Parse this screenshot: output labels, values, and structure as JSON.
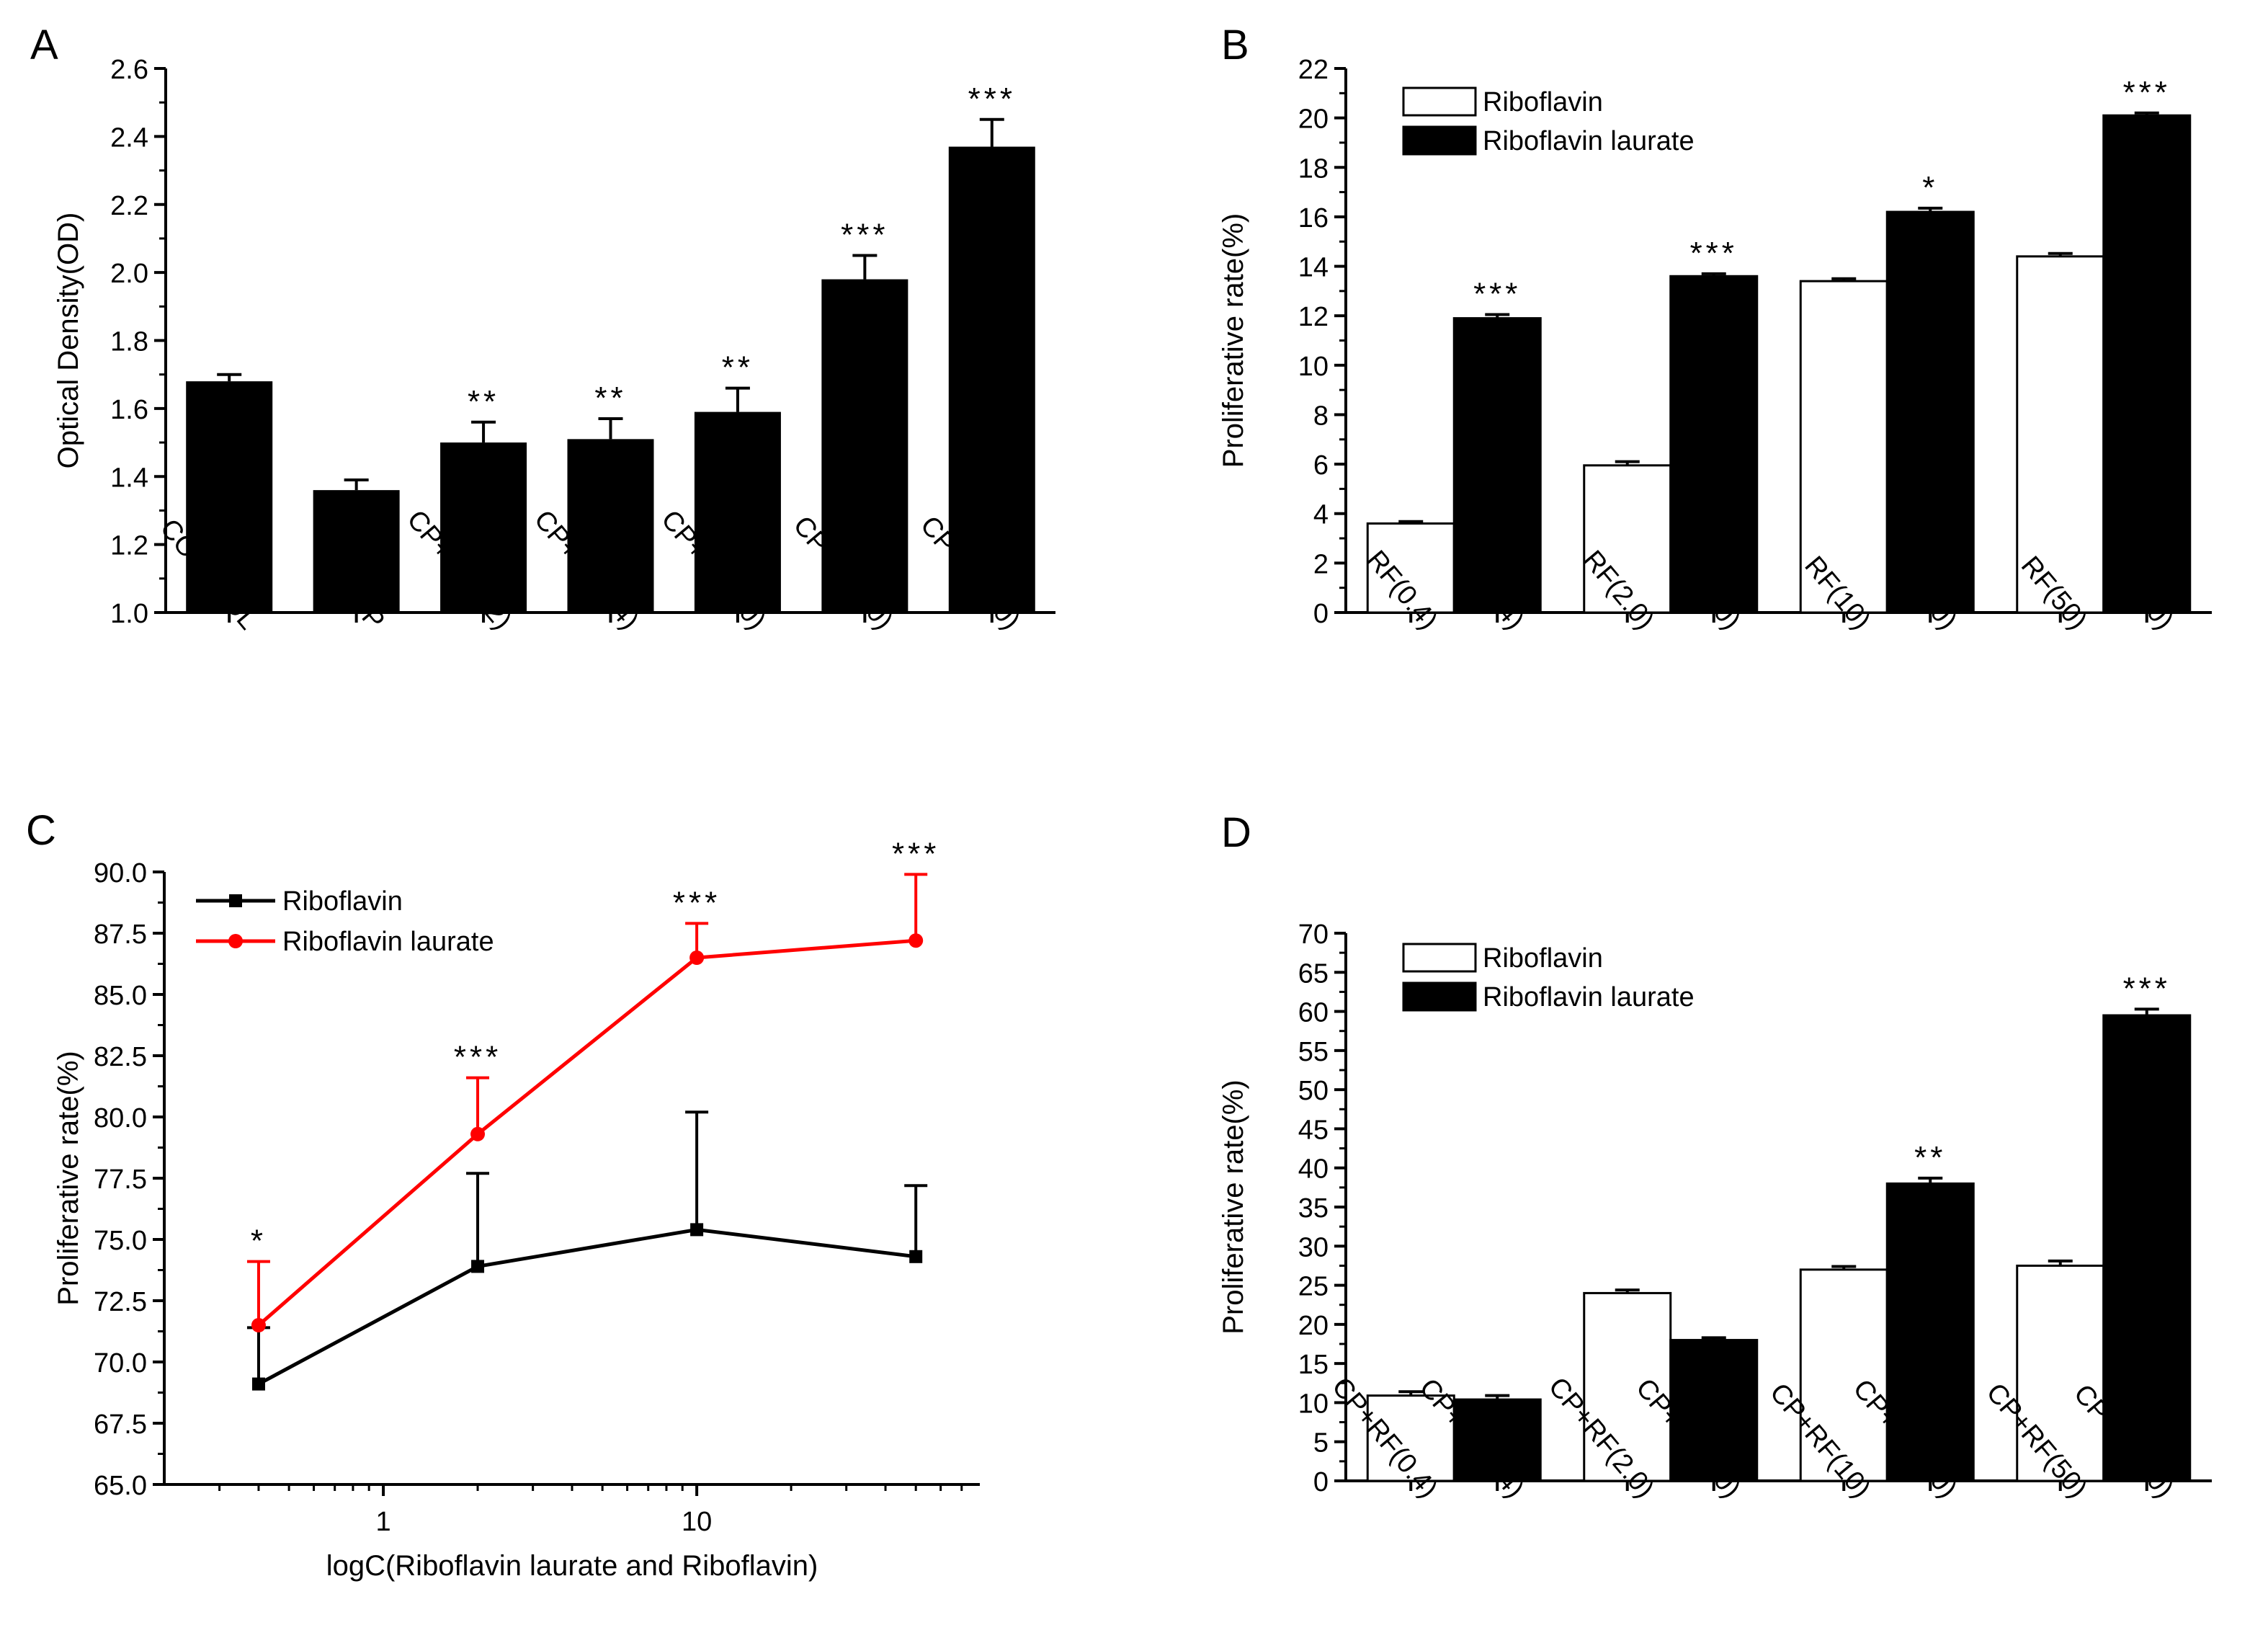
{
  "chart_data": [
    {
      "panel": "A",
      "type": "bar",
      "ylabel": "Optical Density(OD)",
      "ylim": [
        1.0,
        2.6
      ],
      "yticks": [
        "1.0",
        "1.2",
        "1.4",
        "1.6",
        "1.8",
        "2.0",
        "2.2",
        "2.4",
        "2.6"
      ],
      "categories": [
        "CONTROL",
        "CP",
        "CP+RL(0.2)",
        "CP+RL(0.4)",
        "CP+RL(2.0)",
        "CP+RL(10)",
        "CP+RL(50)"
      ],
      "values": [
        1.68,
        1.36,
        1.5,
        1.51,
        1.59,
        1.98,
        2.37
      ],
      "errors": [
        0.02,
        0.03,
        0.06,
        0.06,
        0.07,
        0.07,
        0.08
      ],
      "significance": [
        "",
        "",
        "**",
        "**",
        "**",
        "***",
        "***"
      ],
      "color": "#000000",
      "grid": false
    },
    {
      "panel": "B",
      "type": "bar",
      "ylabel": "Proliferative rate(%)",
      "ylim": [
        0,
        22
      ],
      "yticks": [
        "0",
        "2",
        "4",
        "6",
        "8",
        "10",
        "12",
        "14",
        "16",
        "18",
        "20",
        "22"
      ],
      "legend": {
        "position": "top-left",
        "entries": [
          "Riboflavin",
          "Riboflavin laurate"
        ]
      },
      "groups": [
        {
          "labels": [
            "RF(0.4)",
            "RL(0.4)"
          ],
          "values": [
            3.6,
            11.9
          ],
          "errors": [
            0.08,
            0.15
          ],
          "significance": [
            "",
            "***"
          ]
        },
        {
          "labels": [
            "RF(2.0)",
            "RL(2.0)"
          ],
          "values": [
            5.95,
            13.6
          ],
          "errors": [
            0.15,
            0.1
          ],
          "significance": [
            "",
            "***"
          ]
        },
        {
          "labels": [
            "RF(10)",
            "RL(10)"
          ],
          "values": [
            13.4,
            16.2
          ],
          "errors": [
            0.1,
            0.15
          ],
          "significance": [
            "",
            "*"
          ]
        },
        {
          "labels": [
            "RF(50)",
            "RL(50)"
          ],
          "values": [
            14.4,
            20.1
          ],
          "errors": [
            0.12,
            0.1
          ],
          "significance": [
            "",
            "***"
          ]
        }
      ],
      "series_colors": [
        "#ffffff",
        "#000000"
      ],
      "grid": false
    },
    {
      "panel": "C",
      "type": "line",
      "xscale": "log",
      "xlabel": "logC(Riboflavin laurate and Riboflavin)",
      "ylabel": "Proliferative rate(%)",
      "xlim": [
        0.2,
        80
      ],
      "xticks": [
        {
          "value": 1,
          "label": "1"
        },
        {
          "value": 10,
          "label": "10"
        }
      ],
      "ylim": [
        65.0,
        90.0
      ],
      "yticks": [
        "65.0",
        "67.5",
        "70.0",
        "72.5",
        "75.0",
        "77.5",
        "80.0",
        "82.5",
        "85.0",
        "87.5",
        "90.0"
      ],
      "x": [
        0.4,
        2,
        10,
        50
      ],
      "legend": {
        "position": "top-left"
      },
      "series": [
        {
          "name": "Riboflavin",
          "values": [
            69.1,
            73.9,
            75.4,
            74.3
          ],
          "errors": [
            2.3,
            3.8,
            4.8,
            2.9
          ],
          "marker": "square",
          "color": "#000000"
        },
        {
          "name": "Riboflavin laurate",
          "values": [
            71.5,
            79.3,
            86.5,
            87.2
          ],
          "errors": [
            2.6,
            2.3,
            1.4,
            2.7
          ],
          "marker": "circle",
          "color": "#ff0000",
          "significance": [
            "*",
            "***",
            "***",
            "***"
          ]
        }
      ],
      "grid": false
    },
    {
      "panel": "D",
      "type": "bar",
      "ylabel": "Proliferative rate(%)",
      "ylim": [
        0,
        70
      ],
      "yticks": [
        "0",
        "5",
        "10",
        "15",
        "20",
        "25",
        "30",
        "35",
        "40",
        "45",
        "50",
        "55",
        "60",
        "65",
        "70"
      ],
      "legend": {
        "position": "top-left",
        "entries": [
          "Riboflavin",
          "Riboflavin laurate"
        ]
      },
      "groups": [
        {
          "labels": [
            "CP+RF(0.4)",
            "CP+RL(0.4)"
          ],
          "values": [
            10.9,
            10.4
          ],
          "errors": [
            0.5,
            0.5
          ],
          "significance": [
            "",
            ""
          ]
        },
        {
          "labels": [
            "CP+RF(2.0)",
            "CP+RL(2.0)"
          ],
          "values": [
            24.0,
            18.0
          ],
          "errors": [
            0.4,
            0.3
          ],
          "significance": [
            "",
            ""
          ]
        },
        {
          "labels": [
            "CP+RF(10)",
            "CP+RL (10)"
          ],
          "values": [
            27.0,
            38.0
          ],
          "errors": [
            0.4,
            0.7
          ],
          "significance": [
            "",
            "**"
          ]
        },
        {
          "labels": [
            "CP+RF(50)",
            "CP+RL(50)"
          ],
          "values": [
            27.5,
            59.5
          ],
          "errors": [
            0.6,
            0.8
          ],
          "significance": [
            "",
            "***"
          ]
        }
      ],
      "series_colors": [
        "#ffffff",
        "#000000"
      ],
      "grid": false
    }
  ],
  "panels": {
    "a": {
      "label": "A"
    },
    "b": {
      "label": "B"
    },
    "c": {
      "label": "C"
    },
    "d": {
      "label": "D"
    }
  }
}
